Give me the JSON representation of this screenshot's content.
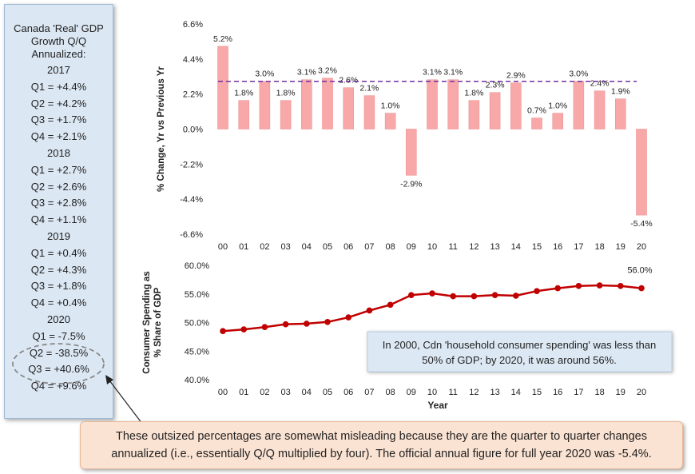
{
  "side_panel": {
    "title_lines": [
      "Canada 'Real' GDP",
      "Growth Q/Q",
      "Annualized:"
    ],
    "lines": [
      "2017",
      "Q1 = +4.4%",
      "Q2 = +4.2%",
      "Q3 = +1.7%",
      "Q4 = +2.1%",
      "2018",
      "Q1 = +2.7%",
      "Q2 = +2.6%",
      "Q3 = +2.8%",
      "Q4 = +1.1%",
      "2019",
      "Q1 = +0.4%",
      "Q2 = +4.3%",
      "Q3 = +1.8%",
      "Q4 = +0.4%",
      "2020",
      "Q1 = -7.5%",
      "Q2 = -38.5%",
      "Q3 = +40.6%",
      "Q4 = +9.6%"
    ]
  },
  "note": "These outsized percentages are somewhat misleading because they are the quarter to quarter changes annualized (i.e., essentially Q/Q multiplied by four). The official annual figure for full year 2020 was -5.4%.",
  "callout": "In 2000, Cdn 'household consumer spending' was less than 50% of GDP; by 2020, it was around 56%.",
  "colors": {
    "bar": "#f8a8a8",
    "line": "#c00000",
    "avg_line": "#7030a0",
    "callout_bg": "#dce8f3"
  },
  "chart_data": [
    {
      "type": "bar",
      "ylabel": "% Change, Yr vs Previous Yr",
      "categories": [
        "00",
        "01",
        "02",
        "03",
        "04",
        "05",
        "06",
        "07",
        "08",
        "09",
        "10",
        "11",
        "12",
        "13",
        "14",
        "15",
        "16",
        "17",
        "18",
        "19",
        "20"
      ],
      "values": [
        5.2,
        1.8,
        3.0,
        1.8,
        3.1,
        3.2,
        2.6,
        2.1,
        1.0,
        -2.9,
        3.1,
        3.1,
        1.8,
        2.3,
        2.9,
        0.7,
        1.0,
        3.0,
        2.4,
        1.9,
        -5.4
      ],
      "data_labels": [
        "5.2%",
        "1.8%",
        "3.0%",
        "1.8%",
        "3.1%",
        "3.2%",
        "2.6%",
        "2.1%",
        "1.0%",
        "-2.9%",
        "3.1%",
        "3.1%",
        "1.8%",
        "2.3%",
        "2.9%",
        "0.7%",
        "1.0%",
        "3.0%",
        "2.4%",
        "1.9%",
        "-5.4%"
      ],
      "reference_line": 3.0,
      "ylim": [
        -6.6,
        6.6
      ],
      "yticks": [
        6.6,
        4.4,
        2.2,
        0.0,
        -2.2,
        -4.4,
        -6.6
      ],
      "ytick_labels": [
        "6.6%",
        "4.4%",
        "2.2%",
        "0.0%",
        "-2.2%",
        "-4.4%",
        "-6.6%"
      ],
      "grid": false
    },
    {
      "type": "line",
      "ylabel": "Consumer Spending as % Share of GDP",
      "xlabel": "Year",
      "categories": [
        "00",
        "01",
        "02",
        "03",
        "04",
        "05",
        "06",
        "07",
        "08",
        "09",
        "10",
        "11",
        "12",
        "13",
        "14",
        "15",
        "16",
        "17",
        "18",
        "19",
        "20"
      ],
      "values": [
        48.5,
        48.8,
        49.2,
        49.7,
        49.8,
        50.1,
        50.9,
        52.1,
        53.1,
        54.8,
        55.1,
        54.6,
        54.6,
        54.8,
        54.7,
        55.5,
        56.0,
        56.4,
        56.5,
        56.4,
        56.0
      ],
      "end_label": "56.0%",
      "ylim": [
        40,
        60
      ],
      "yticks": [
        60,
        55,
        50,
        45,
        40
      ],
      "ytick_labels": [
        "60.0%",
        "55.0%",
        "50.0%",
        "45.0%",
        "40.0%"
      ],
      "grid": false
    }
  ]
}
